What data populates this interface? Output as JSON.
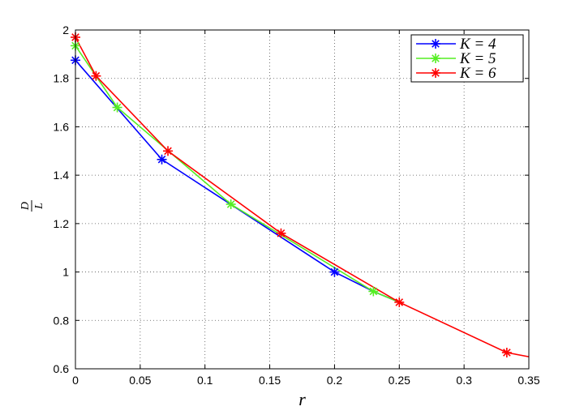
{
  "chart_data": {
    "type": "line",
    "title": "",
    "xlabel": "r",
    "ylabel_num": "D",
    "ylabel_den": "L",
    "xlim": [
      0,
      0.35
    ],
    "ylim": [
      0.6,
      2.0
    ],
    "xticks": [
      0,
      0.05,
      0.1,
      0.15,
      0.2,
      0.25,
      0.3,
      0.35
    ],
    "xtick_labels": [
      "0",
      "0.05",
      "0.1",
      "0.15",
      "0.2",
      "0.25",
      "0.3",
      "0.35"
    ],
    "yticks": [
      0.6,
      0.8,
      1.0,
      1.2,
      1.4,
      1.6,
      1.8,
      2.0
    ],
    "ytick_labels": [
      "0.6",
      "0.8",
      "1",
      "1.2",
      "1.4",
      "1.6",
      "1.8",
      "2"
    ],
    "grid": true,
    "legend_position": "top-right",
    "series": [
      {
        "name": "K = 4",
        "color": "#0000ff",
        "points": [
          [
            0,
            1.875
          ],
          [
            0.0667,
            1.465
          ],
          [
            0.2,
            1.0
          ]
        ],
        "line": [
          [
            0,
            1.875
          ],
          [
            0.0667,
            1.465
          ],
          [
            0.2,
            1.0
          ],
          [
            0.23,
            0.92
          ],
          [
            0.25,
            0.875
          ]
        ]
      },
      {
        "name": "K = 5",
        "color": "#55ee22",
        "points": [
          [
            0,
            1.935
          ],
          [
            0.0323,
            1.68
          ],
          [
            0.12,
            1.28
          ],
          [
            0.23,
            0.92
          ]
        ],
        "line": [
          [
            0,
            1.935
          ],
          [
            0.0323,
            1.68
          ],
          [
            0.12,
            1.28
          ],
          [
            0.23,
            0.92
          ],
          [
            0.25,
            0.875
          ]
        ]
      },
      {
        "name": "K = 6",
        "color": "#ff0000",
        "points": [
          [
            0,
            1.97
          ],
          [
            0.0159,
            1.81
          ],
          [
            0.0714,
            1.5
          ],
          [
            0.1587,
            1.16
          ],
          [
            0.25,
            0.875
          ],
          [
            0.333,
            0.667
          ]
        ],
        "line": [
          [
            0,
            1.97
          ],
          [
            0.0159,
            1.81
          ],
          [
            0.0714,
            1.5
          ],
          [
            0.1587,
            1.16
          ],
          [
            0.25,
            0.875
          ],
          [
            0.333,
            0.667
          ],
          [
            0.35,
            0.65
          ]
        ]
      }
    ]
  }
}
